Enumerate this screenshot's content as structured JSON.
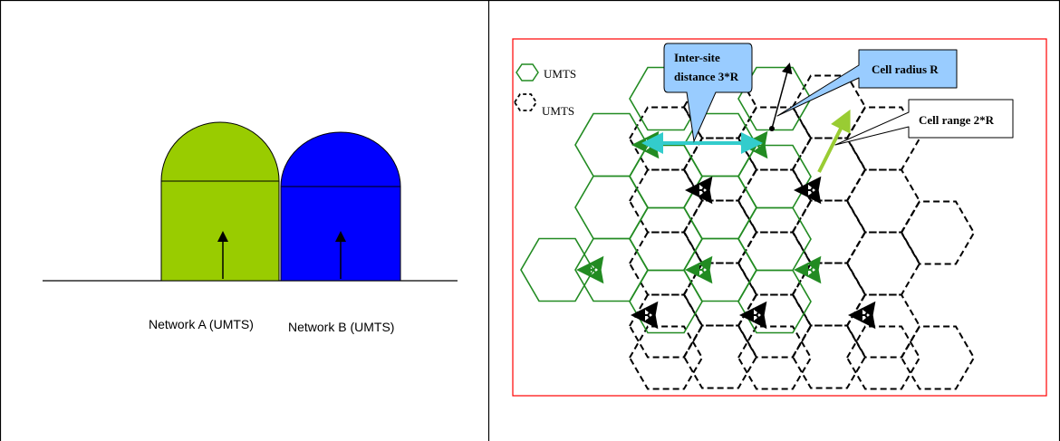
{
  "left_panel": {
    "network_a_label": "Network A (UMTS)",
    "network_b_label": "Network B (UMTS)",
    "colors": {
      "network_a_fill": "#99cc00",
      "network_b_fill": "#0000ff"
    }
  },
  "right_panel": {
    "legend": {
      "solid_label": "UMTS",
      "dashed_label": "UMTS"
    },
    "callouts": {
      "inter_site_line1": "Inter-site",
      "inter_site_line2": "distance 3*R",
      "cell_radius": "Cell radius R",
      "cell_range": "Cell range 2*R"
    },
    "colors": {
      "frame_border": "#ff0000",
      "network_a_hex": "#228B22",
      "network_b_hex": "#000000",
      "inter_site_arrow": "#33cccc",
      "cell_range_arrow": "#99cc33",
      "callout_fill": "#99ccff"
    }
  }
}
